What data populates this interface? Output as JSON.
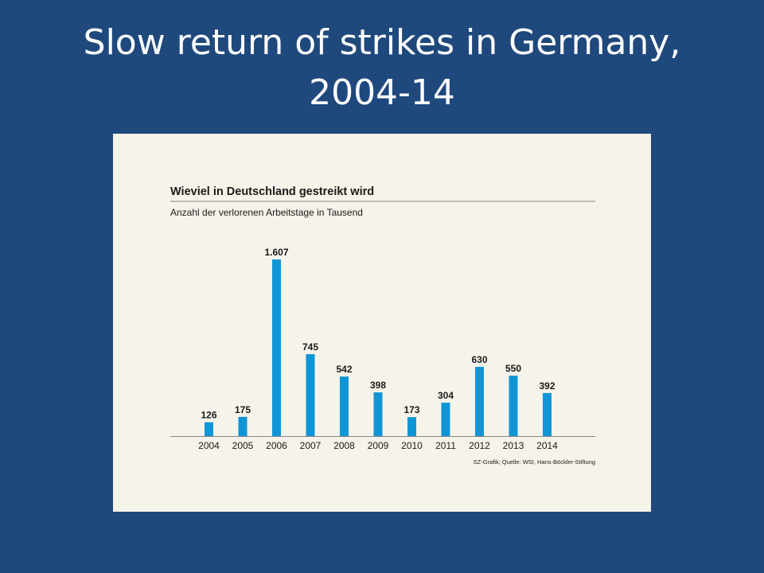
{
  "slide": {
    "title_line1": "Slow return of strikes in Germany,",
    "title_line2": "2004-14"
  },
  "colors": {
    "background": "#1f497d",
    "panel": "#f5f3ea",
    "bar": "#0f95d6",
    "rule": "#888888"
  },
  "chart_data": {
    "type": "bar",
    "title": "Wieviel in Deutschland gestreikt wird",
    "subtitle": "Anzahl der verlorenen Arbeitstage in Tausend",
    "categories": [
      "2004",
      "2005",
      "2006",
      "2007",
      "2008",
      "2009",
      "2010",
      "2011",
      "2012",
      "2013",
      "2014"
    ],
    "values": [
      126,
      175,
      1607,
      745,
      542,
      398,
      173,
      304,
      630,
      550,
      392
    ],
    "value_labels": [
      "126",
      "175",
      "1.607",
      "745",
      "542",
      "398",
      "173",
      "304",
      "630",
      "550",
      "392"
    ],
    "source": "SZ-Grafik; Quelle: WSI, Hans-Böckler-Stiftung",
    "xlabel": "",
    "ylabel": "",
    "ylim": [
      0,
      1607
    ],
    "grid": false,
    "legend": "none"
  }
}
